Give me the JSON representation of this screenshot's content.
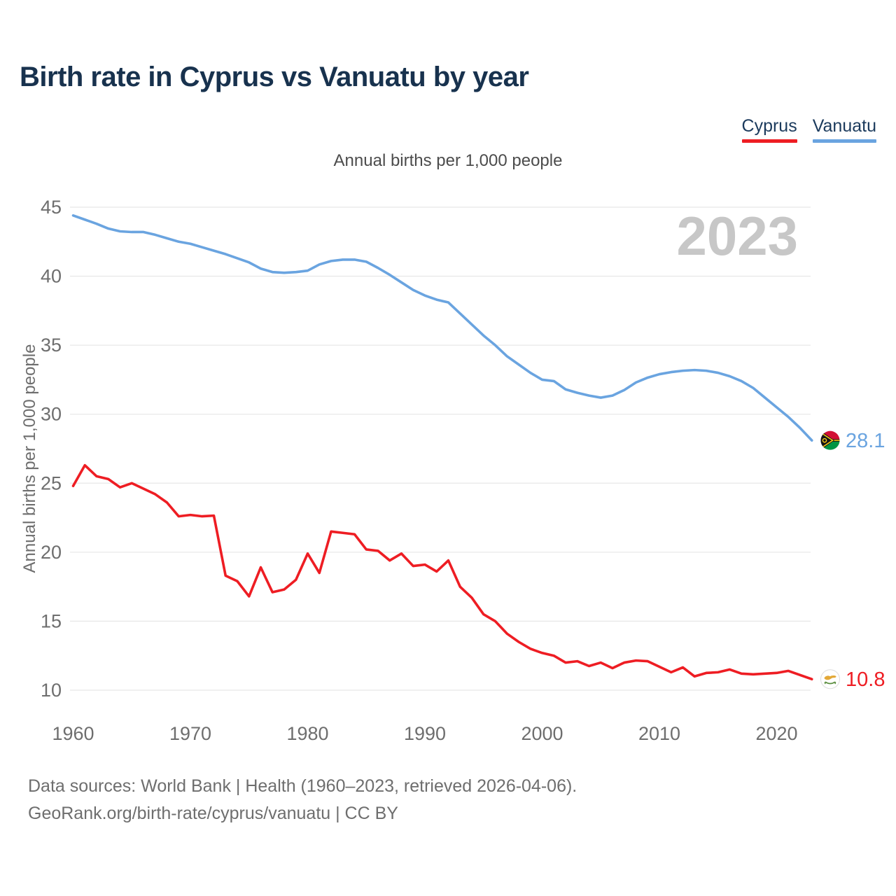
{
  "header": {
    "title": "Birth rate in Cyprus vs Vanuatu by year",
    "subtitle": "Annual births per 1,000 people"
  },
  "legend": {
    "items": [
      {
        "label": "Cyprus",
        "color": "#ee1d23"
      },
      {
        "label": "Vanuatu",
        "color": "#6aa4e0"
      }
    ]
  },
  "watermark": "2023",
  "chart_data": {
    "type": "line",
    "title": "Birth rate in Cyprus vs Vanuatu by year",
    "subtitle": "Annual births per 1,000 people",
    "ylabel": "Annual births per 1,000 people",
    "xlabel": "",
    "xlim": [
      1960,
      2026.5
    ],
    "ylim": [
      10,
      46.5
    ],
    "grid": true,
    "legend_position": "top-right",
    "xticks": [
      1960,
      1970,
      1980,
      1990,
      2000,
      2010,
      2020
    ],
    "yticks": [
      10,
      15,
      20,
      25,
      30,
      35,
      40,
      45
    ],
    "x": [
      1960,
      1961,
      1962,
      1963,
      1964,
      1965,
      1966,
      1967,
      1968,
      1969,
      1970,
      1971,
      1972,
      1973,
      1974,
      1975,
      1976,
      1977,
      1978,
      1979,
      1980,
      1981,
      1982,
      1983,
      1984,
      1985,
      1986,
      1987,
      1988,
      1989,
      1990,
      1991,
      1992,
      1993,
      1994,
      1995,
      1996,
      1997,
      1998,
      1999,
      2000,
      2001,
      2002,
      2003,
      2004,
      2005,
      2006,
      2007,
      2008,
      2009,
      2010,
      2011,
      2012,
      2013,
      2014,
      2015,
      2016,
      2017,
      2018,
      2019,
      2020,
      2021,
      2022,
      2023
    ],
    "series": [
      {
        "name": "Cyprus",
        "color": "#ee1d23",
        "end_label": "10.8",
        "flag": "cyprus",
        "values": [
          24.8,
          26.3,
          25.5,
          25.3,
          24.7,
          25.0,
          24.6,
          24.2,
          23.6,
          22.6,
          22.7,
          22.6,
          22.65,
          18.3,
          17.9,
          16.8,
          18.9,
          17.1,
          17.3,
          18.0,
          19.9,
          18.5,
          21.5,
          21.4,
          21.3,
          20.2,
          20.1,
          19.4,
          19.9,
          19.0,
          19.1,
          18.6,
          19.4,
          17.5,
          16.7,
          15.5,
          15.0,
          14.1,
          13.5,
          13.0,
          12.7,
          12.5,
          12.0,
          12.1,
          11.75,
          12.0,
          11.6,
          12.0,
          12.15,
          12.1,
          11.7,
          11.3,
          11.65,
          11.0,
          11.25,
          11.3,
          11.5,
          11.2,
          11.15,
          11.2,
          11.25,
          11.4,
          11.1,
          10.8
        ]
      },
      {
        "name": "Vanuatu",
        "color": "#6aa4e0",
        "end_label": "28.1",
        "flag": "vanuatu",
        "values": [
          44.4,
          44.1,
          43.8,
          43.45,
          43.25,
          43.2,
          43.2,
          43.0,
          42.75,
          42.5,
          42.35,
          42.1,
          41.85,
          41.6,
          41.3,
          41.0,
          40.55,
          40.3,
          40.25,
          40.3,
          40.4,
          40.85,
          41.1,
          41.2,
          41.2,
          41.05,
          40.6,
          40.1,
          39.55,
          39.0,
          38.6,
          38.3,
          38.1,
          37.3,
          36.5,
          35.7,
          35.0,
          34.2,
          33.6,
          33.0,
          32.5,
          32.4,
          31.8,
          31.55,
          31.35,
          31.2,
          31.35,
          31.75,
          32.3,
          32.65,
          32.9,
          33.05,
          33.15,
          33.2,
          33.15,
          33.0,
          32.75,
          32.4,
          31.9,
          31.2,
          30.5,
          29.8,
          29.0,
          28.1
        ]
      }
    ]
  },
  "footer": {
    "line1": "Data sources: World Bank | Health (1960–2023, retrieved 2026-04-06).",
    "line2": "GeoRank.org/birth-rate/cyprus/vanuatu | CC BY"
  }
}
